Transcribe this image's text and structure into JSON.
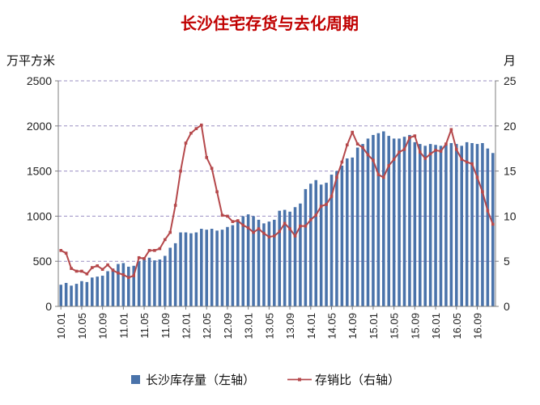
{
  "chart_data": {
    "type": "bar+line",
    "title": "长沙住宅存货与去化周期",
    "title_color": "#c00000",
    "left_axis_unit": "万平方米",
    "right_axis_unit": "月",
    "ylim_left": [
      0,
      2500
    ],
    "ylim_right": [
      0,
      25
    ],
    "left_ticks": [
      "0",
      "500",
      "1000",
      "1500",
      "2000",
      "2500"
    ],
    "right_ticks": [
      "0",
      "5",
      "10",
      "15",
      "20",
      "25"
    ],
    "x_tick_labels": [
      "10.01",
      "10.05",
      "10.09",
      "11.01",
      "11.05",
      "11.09",
      "12.01",
      "12.05",
      "12.09",
      "13.01",
      "13.05",
      "13.09",
      "14.01",
      "14.05",
      "14.09",
      "15.01",
      "15.05",
      "15.09",
      "16.01",
      "16.05",
      "16.09"
    ],
    "grid": "dashed horizontal",
    "legend_position": "bottom",
    "series": [
      {
        "name": "长沙库存量（左轴）",
        "axis": "left",
        "kind": "bar",
        "color": "#4a73aa",
        "values": [
          240,
          260,
          230,
          250,
          280,
          270,
          320,
          330,
          340,
          390,
          420,
          470,
          480,
          440,
          450,
          500,
          530,
          540,
          510,
          520,
          560,
          650,
          700,
          820,
          820,
          810,
          820,
          860,
          850,
          860,
          840,
          850,
          880,
          900,
          960,
          1000,
          1020,
          1000,
          960,
          920,
          940,
          960,
          1060,
          1070,
          1050,
          1100,
          1140,
          1300,
          1360,
          1400,
          1350,
          1370,
          1460,
          1500,
          1560,
          1640,
          1650,
          1760,
          1800,
          1860,
          1900,
          1920,
          1940,
          1890,
          1860,
          1860,
          1880,
          1900,
          1820,
          1800,
          1780,
          1800,
          1790,
          1780,
          1790,
          1810,
          1800,
          1780,
          1820,
          1810,
          1800,
          1810,
          1750,
          1700
        ]
      },
      {
        "name": "存销比（右轴）",
        "axis": "right",
        "kind": "line",
        "color": "#b5484b",
        "values": [
          6.2,
          5.9,
          4.2,
          3.9,
          3.9,
          3.6,
          4.3,
          4.5,
          4.1,
          4.6,
          4.0,
          3.7,
          3.5,
          3.2,
          3.4,
          5.4,
          5.3,
          6.2,
          6.2,
          6.4,
          7.4,
          8.2,
          11.2,
          15.0,
          18.1,
          19.2,
          19.7,
          20.1,
          16.5,
          15.3,
          12.7,
          10.1,
          10.0,
          9.4,
          9.5,
          9.0,
          8.7,
          8.2,
          8.6,
          8.1,
          7.7,
          7.8,
          8.3,
          9.2,
          8.6,
          7.8,
          8.9,
          8.9,
          9.6,
          10.1,
          11.1,
          11.3,
          12.2,
          14.3,
          16.0,
          17.9,
          19.3,
          18.0,
          17.6,
          16.8,
          16.2,
          14.6,
          14.3,
          15.6,
          16.3,
          17.1,
          17.4,
          18.7,
          18.9,
          17.1,
          16.4,
          16.9,
          17.3,
          17.2,
          18.0,
          19.6,
          17.4,
          16.3,
          16.0,
          15.8,
          14.3,
          12.7,
          10.6,
          9.1
        ]
      }
    ]
  }
}
